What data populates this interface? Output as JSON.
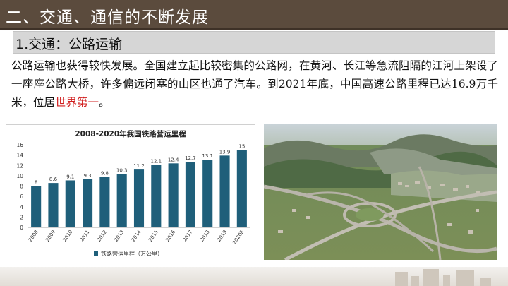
{
  "slide": {
    "title": "二、交通、通信的不断发展",
    "section_heading": "1.交通：公路运输",
    "paragraph_main": "公路运输也获得较快发展。全国建立起比较密集的公路网，在黄河、长江等急流阻隔的江河上架设了一座座公路大桥，许多偏远闭塞的山区也通了汽车。到2021年底，中国高速公路里程已达16.9万千米，位居",
    "paragraph_highlight": "世界第一",
    "paragraph_end": "。"
  },
  "chart_data": {
    "type": "bar",
    "title": "2008-2020年我国铁路营运里程",
    "categories": [
      "2008",
      "2009",
      "2010",
      "2011",
      "2012",
      "2013",
      "2014",
      "2015",
      "2016",
      "2017",
      "2018",
      "2019",
      "2020E"
    ],
    "series": [
      {
        "name": "铁路营运里程（万公里）",
        "values": [
          8,
          8.6,
          9.1,
          9.3,
          9.8,
          10.3,
          11.2,
          12.1,
          12.4,
          12.7,
          13.1,
          13.9,
          15
        ]
      }
    ],
    "value_labels": [
      "8",
      "8.6",
      "9.1",
      "9.3",
      "9.8",
      "10.3",
      "11.2",
      "12.1",
      "12.4",
      "12.7",
      "13.1",
      "13.9",
      "15"
    ],
    "yticks": [
      "0",
      "2",
      "4",
      "6",
      "8",
      "10",
      "12",
      "14",
      "16"
    ],
    "ylim": [
      0,
      16
    ],
    "grid": false,
    "legend_position": "bottom",
    "bar_color": "#1f5f7a"
  }
}
